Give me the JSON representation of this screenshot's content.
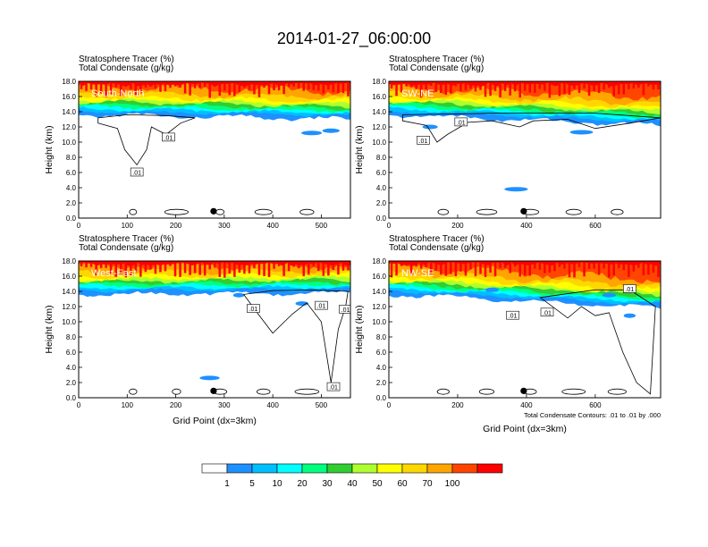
{
  "main_title": "2014-01-27_06:00:00",
  "palette": [
    "#ffffff",
    "#1e90ff",
    "#00bfff",
    "#00ffff",
    "#00ff7f",
    "#32cd32",
    "#adff2f",
    "#ffff00",
    "#ffd700",
    "#ffa500",
    "#ff4500",
    "#ff0000"
  ],
  "colorbar": {
    "labels": [
      "1",
      "5",
      "10",
      "20",
      "30",
      "40",
      "50",
      "60",
      "70",
      "100"
    ]
  },
  "chart_data": [
    {
      "type": "heatmap",
      "panel_title": "South-North",
      "title_lines": [
        "Stratosphere Tracer   (%)",
        "Total Condensate   (g/kg)"
      ],
      "ylabel": "Height (km)",
      "xlabel": "",
      "xlim": [
        0,
        560
      ],
      "ylim": [
        0,
        18
      ],
      "xticks": [
        "0",
        "100",
        "200",
        "300",
        "400",
        "500"
      ],
      "xtick_values": [
        0,
        100,
        200,
        300,
        400,
        500
      ],
      "yticks": [
        "0.0",
        "2.0",
        "4.0",
        "6.0",
        "8.0",
        "10.0",
        "12.0",
        "14.0",
        "16.0",
        "18.0"
      ],
      "marker_x": 278,
      "contour_labels": [
        ".01",
        ".01"
      ],
      "footnote": ""
    },
    {
      "type": "heatmap",
      "panel_title": "SW-NE",
      "title_lines": [
        "Stratosphere Tracer   (%)",
        "Total Condensate   (g/kg)"
      ],
      "ylabel": "Height (km)",
      "xlabel": "",
      "xlim": [
        0,
        790
      ],
      "ylim": [
        0,
        18
      ],
      "xticks": [
        "0",
        "200",
        "400",
        "600"
      ],
      "xtick_values": [
        0,
        200,
        400,
        600
      ],
      "yticks": [
        "0.0",
        "2.0",
        "4.0",
        "6.0",
        "8.0",
        "10.0",
        "12.0",
        "14.0",
        "16.0",
        "18.0"
      ],
      "marker_x": 392,
      "contour_labels": [
        ".01",
        ".01"
      ],
      "footnote": ""
    },
    {
      "type": "heatmap",
      "panel_title": "West-East",
      "title_lines": [
        "Stratosphere Tracer   (%)",
        "Total Condensate   (g/kg)"
      ],
      "ylabel": "Height (km)",
      "xlabel": "Grid Point (dx=3km)",
      "xlim": [
        0,
        560
      ],
      "ylim": [
        0,
        18
      ],
      "xticks": [
        "0",
        "100",
        "200",
        "300",
        "400",
        "500"
      ],
      "xtick_values": [
        0,
        100,
        200,
        300,
        400,
        500
      ],
      "yticks": [
        "0.0",
        "2.0",
        "4.0",
        "6.0",
        "8.0",
        "10.0",
        "12.0",
        "14.0",
        "16.0",
        "18.0"
      ],
      "marker_x": 278,
      "contour_labels": [
        ".01",
        ".01",
        ".01",
        ".01"
      ],
      "footnote": ""
    },
    {
      "type": "heatmap",
      "panel_title": "NW-SE",
      "title_lines": [
        "Stratosphere Tracer   (%)",
        "Total Condensate   (g/kg)"
      ],
      "ylabel": "Height (km)",
      "xlabel": "Grid Point (dx=3km)",
      "xlim": [
        0,
        790
      ],
      "ylim": [
        0,
        18
      ],
      "xticks": [
        "0",
        "200",
        "400",
        "600"
      ],
      "xtick_values": [
        0,
        200,
        400,
        600
      ],
      "yticks": [
        "0.0",
        "2.0",
        "4.0",
        "6.0",
        "8.0",
        "10.0",
        "12.0",
        "14.0",
        "16.0",
        "18.0"
      ],
      "marker_x": 392,
      "contour_labels": [
        ".01",
        ".01",
        ".01"
      ],
      "footnote": "Total Condensate Contours: .01 to .01 by .000"
    }
  ]
}
